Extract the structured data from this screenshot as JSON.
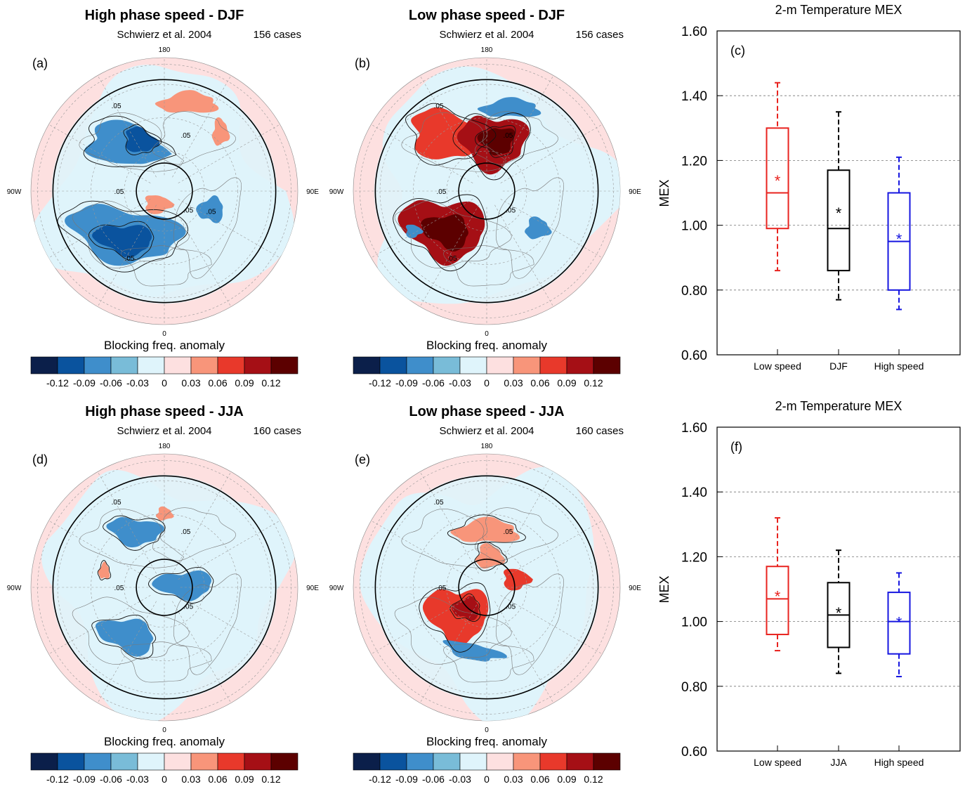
{
  "colors": {
    "red": "#e8231f",
    "black": "#000000",
    "blue": "#1616e0",
    "ocean_light": "#dff4fb",
    "outer_pink": "#fde0e0",
    "grid": "#555555"
  },
  "colorbar": {
    "colors": [
      "#0b1f4a",
      "#0a539e",
      "#3f8ecb",
      "#79bcd8",
      "#dff4fb",
      "#fde0e0",
      "#f8957a",
      "#e8392b",
      "#a50f15",
      "#5c0000"
    ],
    "ticks": [
      "-0.12",
      "-0.09",
      "-0.06",
      "-0.03",
      "0",
      "0.03",
      "0.06",
      "0.09",
      "0.12"
    ]
  },
  "maps": [
    {
      "panel": "(a)",
      "title": "High phase speed - DJF",
      "left_note": "Schwierz et al. 2004",
      "right_note": "156 cases",
      "label_top": "180",
      "label_bottom": "0",
      "label_left": "90W",
      "label_right": "90E",
      "caption": "Blocking freq. anomaly",
      "contour_labels": [
        ".05",
        ".05",
        ".05",
        ".05",
        ".05",
        ".05"
      ],
      "sign": -1,
      "season": "DJF"
    },
    {
      "panel": "(b)",
      "title": "Low phase speed - DJF",
      "left_note": "Schwierz et al. 2004",
      "right_note": "156 cases",
      "label_top": "180",
      "label_bottom": "0",
      "label_left": "90W",
      "label_right": "90E",
      "caption": "Blocking freq. anomaly",
      "contour_labels": [
        ".05",
        ".05",
        ".05",
        ".05",
        ".05"
      ],
      "sign": 1,
      "season": "DJF"
    },
    {
      "panel": "(d)",
      "title": "High phase speed - JJA",
      "left_note": "Schwierz et al. 2004",
      "right_note": "160 cases",
      "label_top": "180",
      "label_bottom": "0",
      "label_left": "90W",
      "label_right": "90E",
      "caption": "Blocking freq. anomaly",
      "contour_labels": [
        ".05",
        ".05",
        ".05",
        ".05"
      ],
      "sign": -1,
      "season": "JJA"
    },
    {
      "panel": "(e)",
      "title": "Low phase speed - JJA",
      "left_note": "Schwierz et al. 2004",
      "right_note": "160 cases",
      "label_top": "180",
      "label_bottom": "0",
      "label_left": "90W",
      "label_right": "90E",
      "caption": "Blocking freq. anomaly",
      "contour_labels": [
        ".05",
        ".05",
        ".05",
        ".05"
      ],
      "sign": 1,
      "season": "JJA"
    }
  ],
  "chart_data": [
    {
      "type": "box",
      "title": "2-m Temperature MEX",
      "panel": "(c)",
      "ylabel": "MEX",
      "ylim": [
        0.6,
        1.6
      ],
      "yticks": [
        "0.60",
        "0.80",
        "1.00",
        "1.20",
        "1.40",
        "1.60"
      ],
      "grid": true,
      "categories": [
        "Low speed",
        "DJF",
        "High speed"
      ],
      "boxes": [
        {
          "min": 0.86,
          "q1": 0.99,
          "median": 1.1,
          "q3": 1.3,
          "max": 1.44,
          "mean": 1.14,
          "color": "#e8231f"
        },
        {
          "min": 0.77,
          "q1": 0.86,
          "median": 0.99,
          "q3": 1.17,
          "max": 1.35,
          "mean": 1.04,
          "color": "#000000"
        },
        {
          "min": 0.74,
          "q1": 0.8,
          "median": 0.95,
          "q3": 1.1,
          "max": 1.21,
          "mean": 0.96,
          "color": "#1616e0"
        }
      ]
    },
    {
      "type": "box",
      "title": "2-m Temperature MEX",
      "panel": "(f)",
      "ylabel": "MEX",
      "ylim": [
        0.6,
        1.6
      ],
      "yticks": [
        "0.60",
        "0.80",
        "1.00",
        "1.20",
        "1.40",
        "1.60"
      ],
      "grid": true,
      "categories": [
        "Low speed",
        "JJA",
        "High speed"
      ],
      "boxes": [
        {
          "min": 0.91,
          "q1": 0.96,
          "median": 1.07,
          "q3": 1.17,
          "max": 1.32,
          "mean": 1.08,
          "color": "#e8231f"
        },
        {
          "min": 0.84,
          "q1": 0.92,
          "median": 1.02,
          "q3": 1.12,
          "max": 1.22,
          "mean": 1.03,
          "color": "#000000"
        },
        {
          "min": 0.83,
          "q1": 0.9,
          "median": 1.0,
          "q3": 1.09,
          "max": 1.15,
          "mean": 1.0,
          "color": "#1616e0"
        }
      ]
    }
  ]
}
